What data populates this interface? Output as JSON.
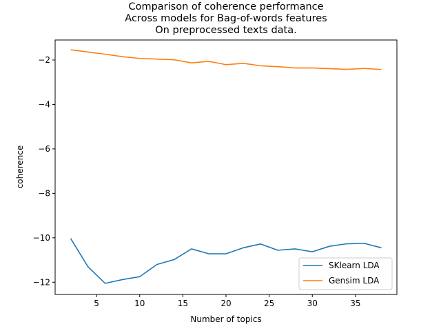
{
  "chart_data": {
    "type": "line",
    "title_lines": [
      "Comparison of coherence performance",
      "Across models for Bag-of-words features",
      "On preprocessed texts data."
    ],
    "xlabel": "Number of topics",
    "ylabel": "coherence",
    "xlim": [
      0.2,
      39.8
    ],
    "ylim": [
      -12.55,
      -1.1
    ],
    "xticks": [
      5,
      10,
      15,
      20,
      25,
      30,
      35
    ],
    "yticks": [
      -12,
      -10,
      -8,
      -6,
      -4,
      -2
    ],
    "ytick_labels": [
      "−12",
      "−10",
      "−8",
      "−6",
      "−4",
      "−2"
    ],
    "grid": false,
    "legend_position": "lower-right",
    "x": [
      2,
      4,
      6,
      8,
      10,
      12,
      14,
      16,
      18,
      20,
      22,
      24,
      26,
      28,
      30,
      32,
      34,
      36,
      38
    ],
    "series": [
      {
        "name": "SKlearn LDA",
        "color": "#1f77b4",
        "values": [
          -10.03,
          -11.3,
          -12.05,
          -11.88,
          -11.75,
          -11.2,
          -10.98,
          -10.5,
          -10.72,
          -10.72,
          -10.45,
          -10.28,
          -10.56,
          -10.5,
          -10.63,
          -10.38,
          -10.27,
          -10.25,
          -10.45
        ]
      },
      {
        "name": "Gensim LDA",
        "color": "#ff7f0e",
        "values": [
          -1.54,
          -1.64,
          -1.74,
          -1.85,
          -1.93,
          -1.96,
          -1.99,
          -2.13,
          -2.06,
          -2.21,
          -2.15,
          -2.26,
          -2.3,
          -2.36,
          -2.36,
          -2.39,
          -2.42,
          -2.38,
          -2.43
        ]
      }
    ]
  }
}
